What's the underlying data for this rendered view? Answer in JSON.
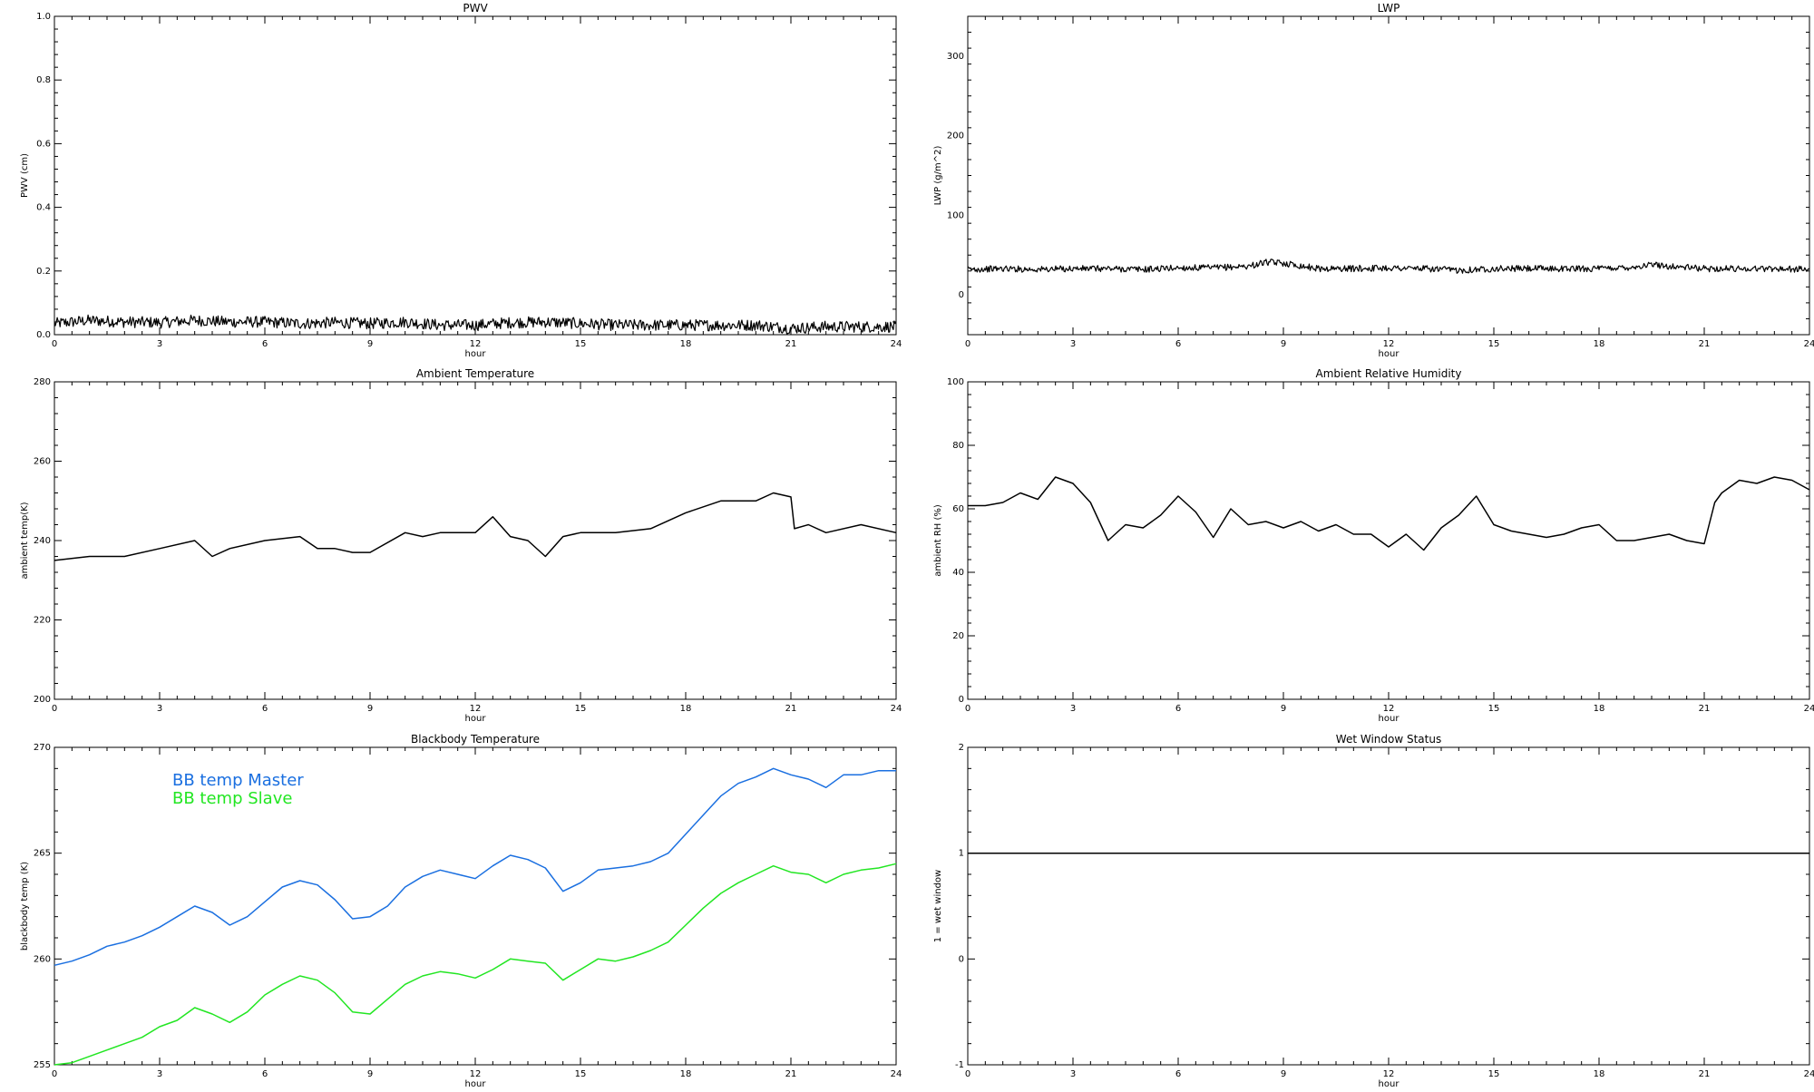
{
  "chart_data": [
    {
      "type": "line",
      "title": "PWV",
      "xlabel": "hour",
      "ylabel": "PWV (cm)",
      "xlim": [
        0,
        24
      ],
      "ylim": [
        0,
        1.0
      ],
      "xticks": [
        0,
        3,
        6,
        9,
        12,
        15,
        18,
        21,
        24
      ],
      "yticks": [
        0.0,
        0.2,
        0.4,
        0.6,
        0.8,
        1.0
      ],
      "ytick_labels": [
        "0.0",
        "0.2",
        "0.4",
        "0.6",
        "0.8",
        "1.0"
      ],
      "noise_band": 0.018,
      "series": [
        {
          "color": "#000000",
          "x": [
            0,
            1,
            2,
            3,
            4,
            5,
            6,
            7,
            8,
            9,
            10,
            11,
            12,
            13,
            14,
            15,
            16,
            17,
            18,
            19,
            20,
            21,
            22,
            23,
            24
          ],
          "y": [
            0.035,
            0.045,
            0.04,
            0.038,
            0.045,
            0.04,
            0.04,
            0.035,
            0.038,
            0.035,
            0.04,
            0.03,
            0.03,
            0.038,
            0.04,
            0.035,
            0.03,
            0.03,
            0.03,
            0.03,
            0.03,
            0.02,
            0.025,
            0.025,
            0.025
          ]
        }
      ]
    },
    {
      "type": "line",
      "title": "LWP",
      "xlabel": "hour",
      "ylabel": "LWP (g/m^2)",
      "xlim": [
        0,
        24
      ],
      "ylim": [
        -50,
        350
      ],
      "xticks": [
        0,
        3,
        6,
        9,
        12,
        15,
        18,
        21,
        24
      ],
      "yticks": [
        0,
        100,
        200,
        300
      ],
      "ytick_labels": [
        "0",
        "100",
        "200",
        "300"
      ],
      "noise_band": 4,
      "series": [
        {
          "color": "#000000",
          "x": [
            0,
            1,
            2,
            3,
            4,
            5,
            6,
            7,
            8,
            8.5,
            9,
            10,
            11,
            12,
            13,
            14,
            15,
            16,
            17,
            18,
            19,
            19.5,
            20,
            21,
            22,
            23,
            24
          ],
          "y": [
            32,
            33,
            32,
            33,
            33,
            32,
            34,
            34,
            36,
            41,
            40,
            33,
            33,
            34,
            33,
            31,
            33,
            33,
            33,
            33,
            35,
            38,
            36,
            33,
            33,
            33,
            32
          ]
        }
      ]
    },
    {
      "type": "line",
      "title": "Ambient Temperature",
      "xlabel": "hour",
      "ylabel": "ambient temp(K)",
      "xlim": [
        0,
        24
      ],
      "ylim": [
        200,
        280
      ],
      "xticks": [
        0,
        3,
        6,
        9,
        12,
        15,
        18,
        21,
        24
      ],
      "yticks": [
        200,
        220,
        240,
        260,
        280
      ],
      "ytick_labels": [
        "200",
        "220",
        "240",
        "260",
        "280"
      ],
      "noise_band": 0,
      "series": [
        {
          "color": "#000000",
          "x": [
            0,
            1,
            2,
            3,
            4,
            4.5,
            5,
            6,
            7,
            7.5,
            8,
            8.5,
            9,
            10,
            10.5,
            11,
            12,
            12.5,
            13,
            13.5,
            14,
            14.5,
            15,
            16,
            17,
            18,
            19,
            20,
            20.5,
            21,
            21.1,
            21.5,
            22,
            23,
            24
          ],
          "y": [
            235,
            236,
            236,
            238,
            240,
            236,
            238,
            240,
            241,
            238,
            238,
            237,
            237,
            242,
            241,
            242,
            242,
            246,
            241,
            240,
            236,
            241,
            242,
            242,
            243,
            247,
            250,
            250,
            252,
            251,
            243,
            244,
            242,
            244,
            242
          ]
        }
      ]
    },
    {
      "type": "line",
      "title": "Ambient Relative Humidity",
      "xlabel": "hour",
      "ylabel": "ambient RH (%)",
      "xlim": [
        0,
        24
      ],
      "ylim": [
        0,
        100
      ],
      "xticks": [
        0,
        3,
        6,
        9,
        12,
        15,
        18,
        21,
        24
      ],
      "yticks": [
        0,
        20,
        40,
        60,
        80,
        100
      ],
      "ytick_labels": [
        "0",
        "20",
        "40",
        "60",
        "80",
        "100"
      ],
      "noise_band": 0,
      "series": [
        {
          "color": "#000000",
          "x": [
            0,
            0.5,
            1,
            1.5,
            2,
            2.5,
            3,
            3.5,
            4,
            4.5,
            5,
            5.5,
            6,
            6.5,
            7,
            7.5,
            8,
            8.5,
            9,
            9.5,
            10,
            10.5,
            11,
            11.5,
            12,
            12.5,
            13,
            13.5,
            14,
            14.5,
            15,
            15.5,
            16,
            16.5,
            17,
            17.5,
            18,
            18.5,
            19,
            19.5,
            20,
            20.5,
            21,
            21.3,
            21.5,
            22,
            22.5,
            23,
            23.5,
            24
          ],
          "y": [
            61,
            61,
            62,
            65,
            63,
            70,
            68,
            62,
            50,
            55,
            54,
            58,
            64,
            59,
            51,
            60,
            55,
            56,
            54,
            56,
            53,
            55,
            52,
            52,
            48,
            52,
            47,
            54,
            58,
            64,
            55,
            53,
            52,
            51,
            52,
            54,
            55,
            50,
            50,
            51,
            52,
            50,
            49,
            62,
            65,
            69,
            68,
            70,
            69,
            66
          ]
        }
      ]
    },
    {
      "type": "line",
      "title": "Blackbody Temperature",
      "xlabel": "hour",
      "ylabel": "blackbody temp (K)",
      "xlim": [
        0,
        24
      ],
      "ylim": [
        255,
        270
      ],
      "xticks": [
        0,
        3,
        6,
        9,
        12,
        15,
        18,
        21,
        24
      ],
      "yticks": [
        255,
        260,
        265,
        270
      ],
      "ytick_labels": [
        "255",
        "260",
        "265",
        "270"
      ],
      "noise_band": 0,
      "legend": [
        "BB temp Master",
        "BB temp Slave"
      ],
      "series": [
        {
          "name": "BB temp Master",
          "color": "#1a6fe0",
          "x": [
            0,
            0.5,
            1,
            1.5,
            2,
            2.5,
            3,
            3.5,
            4,
            4.5,
            5,
            5.5,
            6,
            6.5,
            7,
            7.5,
            8,
            8.5,
            9,
            9.5,
            10,
            10.5,
            11,
            11.5,
            12,
            12.5,
            13,
            13.5,
            14,
            14.5,
            15,
            15.5,
            16,
            16.5,
            17,
            17.5,
            18,
            18.5,
            19,
            19.5,
            20,
            20.5,
            21,
            21.5,
            22,
            22.5,
            23,
            23.5,
            24
          ],
          "y": [
            259.7,
            259.9,
            260.2,
            260.6,
            260.8,
            261.1,
            261.5,
            262.0,
            262.5,
            262.2,
            261.6,
            262.0,
            262.7,
            263.4,
            263.7,
            263.5,
            262.8,
            261.9,
            262.0,
            262.5,
            263.4,
            263.9,
            264.2,
            264.0,
            263.8,
            264.4,
            264.9,
            264.7,
            264.3,
            263.2,
            263.6,
            264.2,
            264.3,
            264.4,
            264.6,
            265.0,
            265.9,
            266.8,
            267.7,
            268.3,
            268.6,
            269.0,
            268.7,
            268.5,
            268.1,
            268.7,
            268.7,
            268.9,
            268.9
          ]
        },
        {
          "name": "BB temp Slave",
          "color": "#22e622",
          "x": [
            0,
            0.5,
            1,
            1.5,
            2,
            2.5,
            3,
            3.5,
            4,
            4.5,
            5,
            5.5,
            6,
            6.5,
            7,
            7.5,
            8,
            8.5,
            9,
            9.5,
            10,
            10.5,
            11,
            11.5,
            12,
            12.5,
            13,
            13.5,
            14,
            14.5,
            15,
            15.5,
            16,
            16.5,
            17,
            17.5,
            18,
            18.5,
            19,
            19.5,
            20,
            20.5,
            21,
            21.5,
            22,
            22.5,
            23,
            23.5,
            24
          ],
          "y": [
            255.0,
            255.1,
            255.4,
            255.7,
            256.0,
            256.3,
            256.8,
            257.1,
            257.7,
            257.4,
            257.0,
            257.5,
            258.3,
            258.8,
            259.2,
            259.0,
            258.4,
            257.5,
            257.4,
            258.1,
            258.8,
            259.2,
            259.4,
            259.3,
            259.1,
            259.5,
            260.0,
            259.9,
            259.8,
            259.0,
            259.5,
            260.0,
            259.9,
            260.1,
            260.4,
            260.8,
            261.6,
            262.4,
            263.1,
            263.6,
            264.0,
            264.4,
            264.1,
            264.0,
            263.6,
            264.0,
            264.2,
            264.3,
            264.5
          ]
        }
      ]
    },
    {
      "type": "line",
      "title": "Wet Window Status",
      "xlabel": "hour",
      "ylabel": "1 = wet window",
      "xlim": [
        0,
        24
      ],
      "ylim": [
        -1,
        2
      ],
      "xticks": [
        0,
        3,
        6,
        9,
        12,
        15,
        18,
        21,
        24
      ],
      "yticks": [
        -1,
        0,
        1,
        2
      ],
      "ytick_labels": [
        "-1",
        "0",
        "1",
        "2"
      ],
      "noise_band": 0,
      "series": [
        {
          "color": "#000000",
          "x": [
            0,
            24
          ],
          "y": [
            1,
            1
          ]
        }
      ]
    }
  ]
}
